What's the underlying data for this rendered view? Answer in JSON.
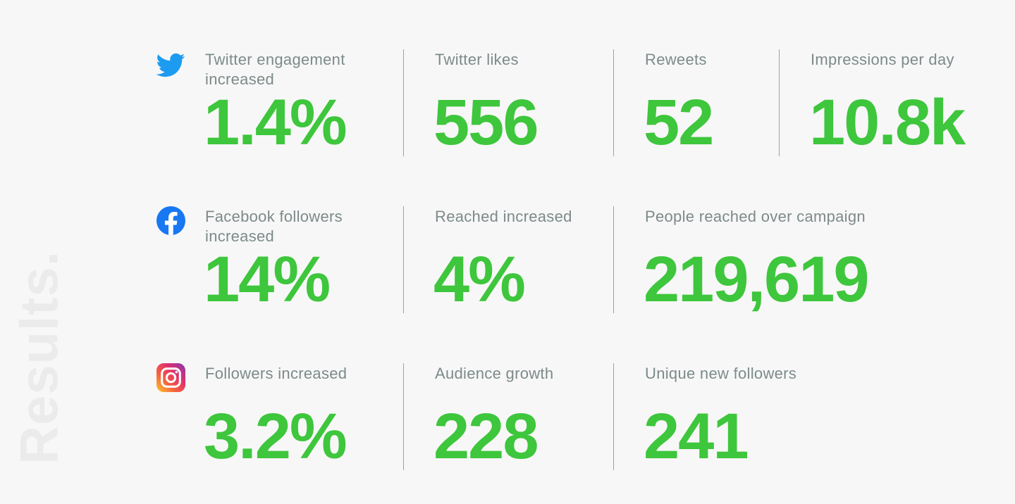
{
  "title": "Results.",
  "rows": [
    [
      {
        "label": "Twitter engagement increased",
        "value": "1.4%"
      },
      {
        "label": "Twitter likes",
        "value": "556"
      },
      {
        "label": "Reweets",
        "value": "52"
      },
      {
        "label": "Impressions per day",
        "value": "10.8k"
      }
    ],
    [
      {
        "label": "Facebook followers increased",
        "value": "14%"
      },
      {
        "label": "Reached increased",
        "value": "4%"
      },
      {
        "label": "People reached over campaign",
        "value": "219,619"
      }
    ],
    [
      {
        "label": "Followers increased",
        "value": "3.2%"
      },
      {
        "label": "Audience growth",
        "value": "228"
      },
      {
        "label": "Unique new followers",
        "value": "241"
      }
    ]
  ]
}
